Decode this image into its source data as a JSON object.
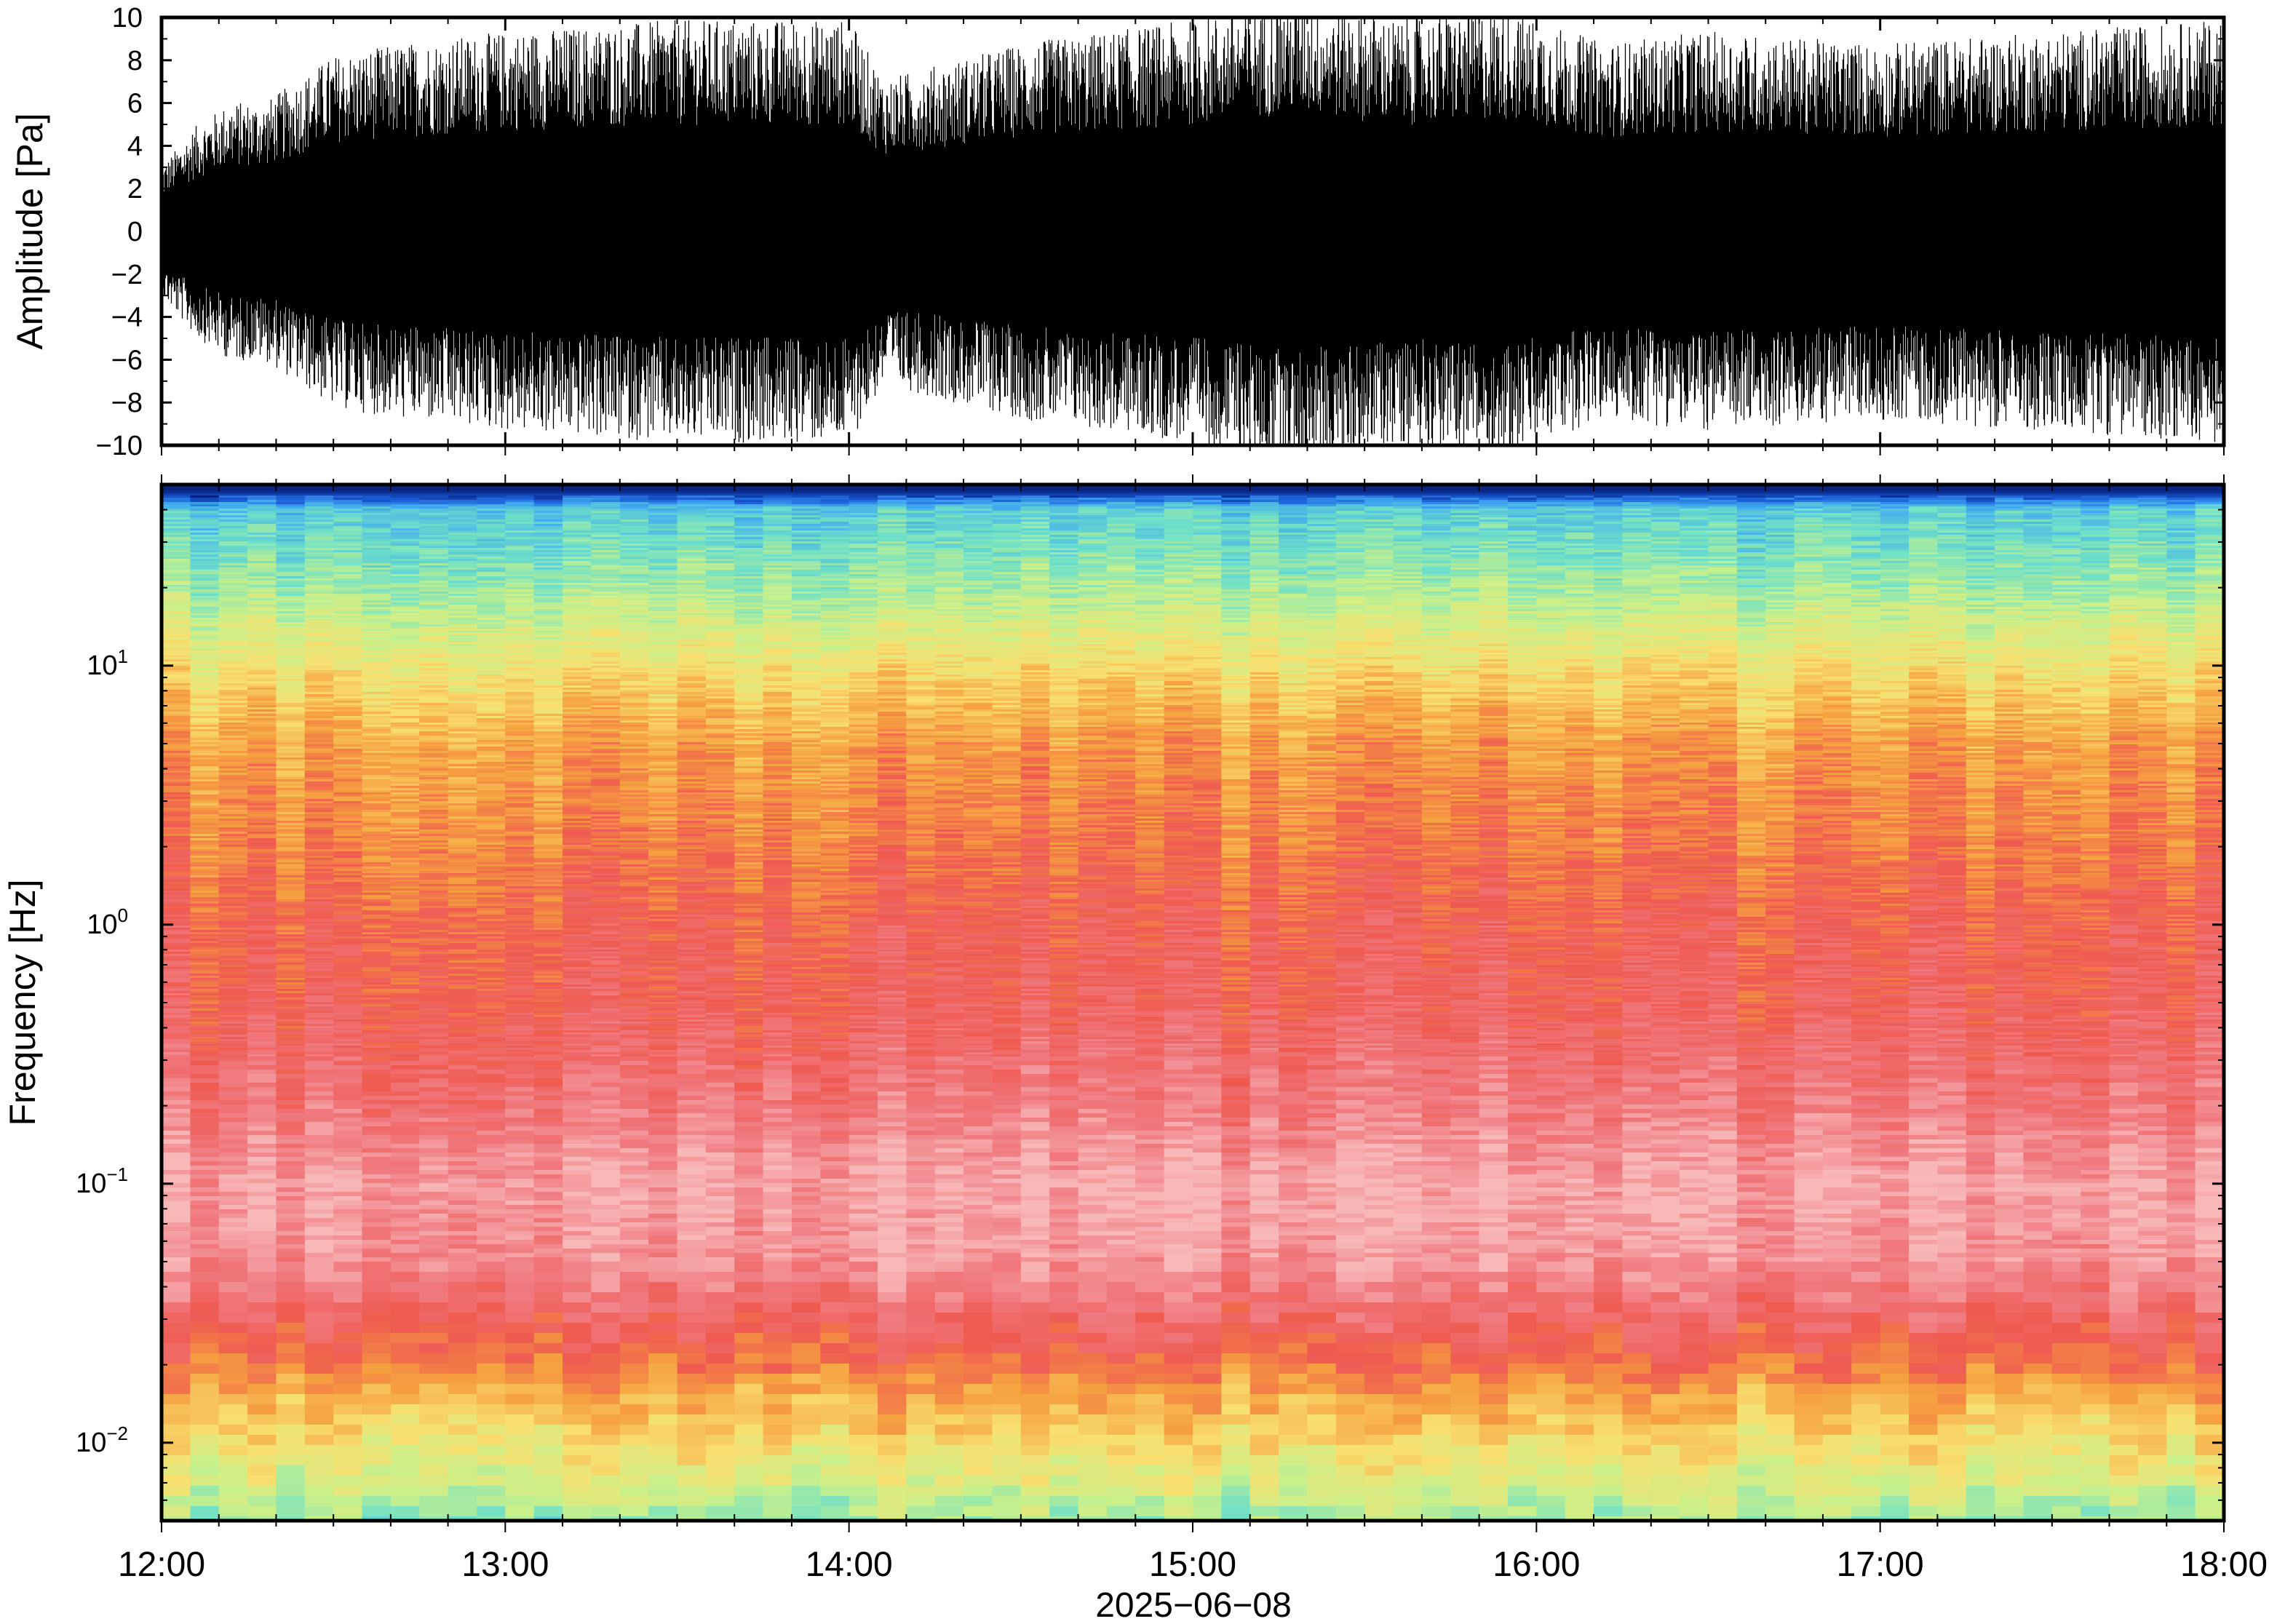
{
  "chart_data": [
    {
      "type": "line",
      "panel": "waveform",
      "ylabel": "Amplitude [Pa]",
      "ylim": [
        -10,
        10
      ],
      "yticks": [
        -10,
        -8,
        -6,
        -4,
        -2,
        0,
        2,
        4,
        6,
        8,
        10
      ],
      "ytick_labels": [
        "−10",
        "−8",
        "−6",
        "−4",
        "−2",
        "0",
        "2",
        "4",
        "6",
        "8",
        "10"
      ],
      "xlim": [
        "2025-06-08 12:00",
        "2025-06-08 18:00"
      ],
      "line_color": "#000000",
      "envelope": {
        "t_hours": [
          0,
          0.1,
          0.2,
          0.3,
          0.5,
          0.7,
          1.0,
          1.5,
          2.0,
          2.1,
          2.5,
          3.0,
          3.3,
          3.6,
          3.9,
          4.2,
          4.5,
          5.0,
          5.5,
          6.0
        ],
        "amplitude_pa": [
          2.8,
          4.5,
          5.5,
          5.5,
          7.5,
          8.0,
          8.5,
          9.0,
          9.0,
          6.5,
          8.0,
          9.0,
          10.0,
          9.0,
          9.5,
          8.0,
          8.5,
          8.0,
          8.5,
          9.0
        ]
      }
    },
    {
      "type": "heatmap",
      "panel": "spectrogram",
      "ylabel": "Frequency [Hz]",
      "yscale": "log",
      "ylim": [
        0.005,
        50
      ],
      "yticks": [
        0.01,
        0.1,
        1,
        10
      ],
      "ytick_labels": [
        {
          "base": "10",
          "exp": "−2"
        },
        {
          "base": "10",
          "exp": "−1"
        },
        {
          "base": "10",
          "exp": "0"
        },
        {
          "base": "10",
          "exp": "1"
        }
      ],
      "xlim": [
        "2025-06-08 12:00",
        "2025-06-08 18:00"
      ],
      "time_bins": 72,
      "colormap": [
        "#001060",
        "#1a5ad6",
        "#3fa8f0",
        "#6ee0c8",
        "#c9f08a",
        "#f8e070",
        "#f6a040",
        "#ef5a50",
        "#f07a80",
        "#f8b8b8"
      ],
      "profile": {
        "freq_hz": [
          0.005,
          0.007,
          0.01,
          0.015,
          0.02,
          0.03,
          0.05,
          0.1,
          0.2,
          0.5,
          1,
          2,
          5,
          10,
          20,
          40,
          47
        ],
        "color_level": [
          3.5,
          4.3,
          5.0,
          5.8,
          6.6,
          7.4,
          8.4,
          8.7,
          7.9,
          7.2,
          7.0,
          6.5,
          6.0,
          4.9,
          3.6,
          2.6,
          0.3
        ]
      }
    }
  ],
  "x_axis": {
    "tick_labels": [
      "12:00",
      "13:00",
      "14:00",
      "15:00",
      "16:00",
      "17:00",
      "18:00"
    ],
    "date_label": "2025−06−08"
  }
}
